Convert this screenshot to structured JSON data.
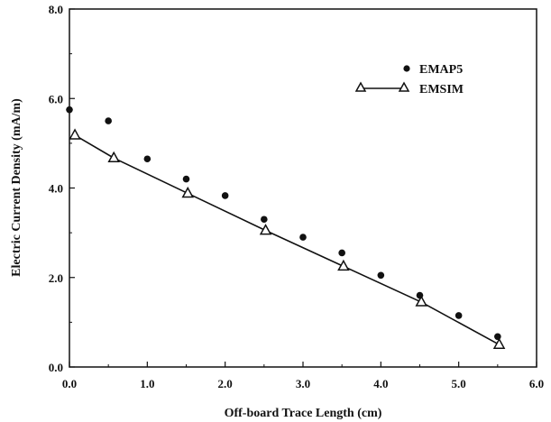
{
  "chart_data": {
    "type": "scatter",
    "xlabel": "Off-board Trace Length (cm)",
    "ylabel": "Electric Current Density (mA/m)",
    "xlim": [
      0.0,
      6.0
    ],
    "ylim": [
      0.0,
      8.0
    ],
    "x_ticks": [
      "0.0",
      "1.0",
      "2.0",
      "3.0",
      "4.0",
      "5.0",
      "6.0"
    ],
    "y_ticks": [
      "0.0",
      "2.0",
      "4.0",
      "6.0",
      "8.0"
    ],
    "grid": false,
    "legend_position": "top-right",
    "series": [
      {
        "name": "EMAP5",
        "marker": "filled-circle",
        "line": false,
        "x": [
          0.0,
          0.5,
          1.0,
          1.5,
          2.0,
          2.5,
          3.0,
          3.5,
          4.0,
          4.5,
          5.0,
          5.5
        ],
        "y": [
          5.75,
          5.5,
          4.65,
          4.2,
          3.83,
          3.3,
          2.9,
          2.55,
          2.05,
          1.6,
          1.15,
          0.68
        ]
      },
      {
        "name": "EMSIM",
        "marker": "open-triangle",
        "line": true,
        "x": [
          0.07,
          0.57,
          1.52,
          2.52,
          3.52,
          4.52,
          5.52
        ],
        "y": [
          5.18,
          4.67,
          3.88,
          3.05,
          2.25,
          1.45,
          0.5
        ]
      }
    ]
  }
}
